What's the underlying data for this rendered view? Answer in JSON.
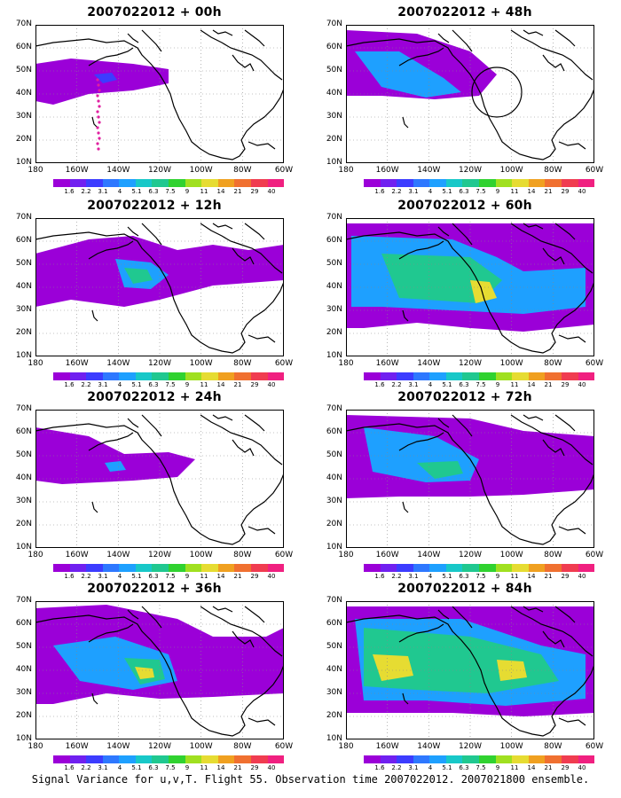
{
  "panels": [
    {
      "title": "2007022012 + 00h",
      "level": 0
    },
    {
      "title": "2007022012 + 48h",
      "level": 4
    },
    {
      "title": "2007022012 + 12h",
      "level": 1
    },
    {
      "title": "2007022012 + 60h",
      "level": 5
    },
    {
      "title": "2007022012 + 24h",
      "level": 2
    },
    {
      "title": "2007022012 + 72h",
      "level": 6
    },
    {
      "title": "2007022012 + 36h",
      "level": 3
    },
    {
      "title": "2007022012 + 84h",
      "level": 7
    }
  ],
  "y_ticks": [
    "70N",
    "60N",
    "50N",
    "40N",
    "30N",
    "20N",
    "10N"
  ],
  "x_ticks": [
    "180",
    "160W",
    "140W",
    "120W",
    "100W",
    "80W",
    "60W"
  ],
  "colorbar": {
    "labels": [
      "1.6",
      "2.2",
      "3.1",
      "4",
      "5.1",
      "6.3",
      "7.5",
      "9",
      "11",
      "14",
      "21",
      "29",
      "40"
    ],
    "colors": [
      "#9b00d8",
      "#7020f0",
      "#3c3cff",
      "#2e78ff",
      "#1ea0ff",
      "#18c8c8",
      "#20c890",
      "#30d230",
      "#a0e020",
      "#e6dc32",
      "#f0a020",
      "#f07030",
      "#f03c50",
      "#f02080"
    ]
  },
  "footer": "Signal Variance for u,v,T. Flight 55. Observation time 2007022012. 2007021800 ensemble."
}
